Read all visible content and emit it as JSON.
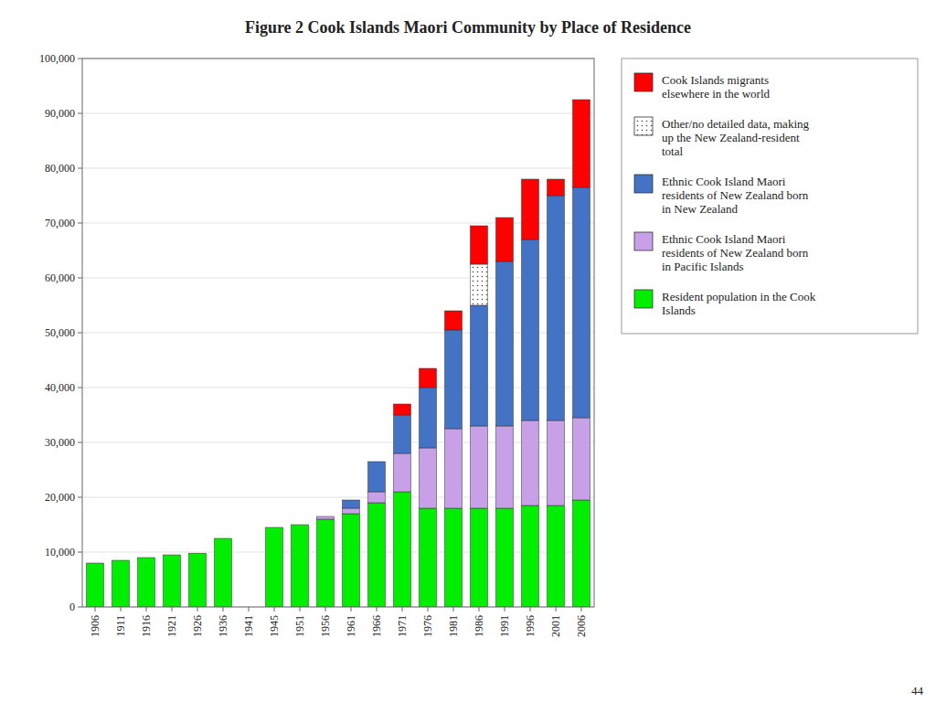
{
  "chart_data": {
    "type": "bar",
    "stacked": true,
    "title": "Figure 2 Cook Islands Maori Community by Place of Residence",
    "categories": [
      "1906",
      "1911",
      "1916",
      "1921",
      "1926",
      "1936",
      "1941",
      "1945",
      "1951",
      "1956",
      "1961",
      "1966",
      "1971",
      "1976",
      "1981",
      "1986",
      "1991",
      "1996",
      "2001",
      "2006"
    ],
    "series": [
      {
        "name": "Resident population in the Cook\nIslands",
        "color": "#00EE00",
        "values": [
          8000,
          8500,
          9000,
          9500,
          9800,
          12500,
          0,
          14500,
          15000,
          16000,
          17000,
          19000,
          21000,
          18000,
          18000,
          18000,
          18000,
          18500,
          18500,
          19500
        ]
      },
      {
        "name": "Ethnic Cook Island Maori\nresidents of New Zealand born\nin Pacific Islands",
        "color": "#C8A0E8",
        "values": [
          0,
          0,
          0,
          0,
          0,
          0,
          0,
          0,
          0,
          500,
          1000,
          2000,
          7000,
          11000,
          14500,
          15000,
          15000,
          15500,
          15500,
          15000
        ]
      },
      {
        "name": "Ethnic Cook Island Maori\nresidents of New Zealand born\nin New Zealand",
        "color": "#4472C4",
        "values": [
          0,
          0,
          0,
          0,
          0,
          0,
          0,
          0,
          0,
          0,
          1500,
          5500,
          7000,
          11000,
          18000,
          22000,
          30000,
          33000,
          41000,
          42000
        ]
      },
      {
        "name": "Other/no detailed data, making\nup the New Zealand-resident\ntotal",
        "color": "#FFFFFF",
        "values": [
          0,
          0,
          0,
          0,
          0,
          0,
          0,
          0,
          0,
          0,
          0,
          0,
          0,
          0,
          0,
          7500,
          0,
          0,
          0,
          0
        ]
      },
      {
        "name": "Cook Islands migrants\nelsewhere in the world",
        "color": "#FF0000",
        "values": [
          0,
          0,
          0,
          0,
          0,
          0,
          0,
          0,
          0,
          0,
          0,
          0,
          2000,
          3500,
          3500,
          7000,
          8000,
          11000,
          3000,
          16000
        ]
      }
    ],
    "ylim": [
      0,
      100000
    ],
    "yticks": [
      0,
      {
        "value": 10000,
        "label": "10,000"
      },
      {
        "value": 20000,
        "label": "20,000"
      },
      {
        "value": 30000,
        "label": "30,000"
      },
      {
        "value": 40000,
        "label": "40,000"
      },
      {
        "value": 50000,
        "label": "50,000"
      },
      {
        "value": 60000,
        "label": "60,000"
      },
      {
        "value": 70000,
        "label": "70,000"
      },
      {
        "value": 80000,
        "label": "80,000"
      },
      {
        "value": 90000,
        "label": "90,000"
      },
      {
        "value": 100000,
        "label": "100,000"
      }
    ],
    "grid": true,
    "legend": "right",
    "annotations": [
      "44"
    ]
  }
}
